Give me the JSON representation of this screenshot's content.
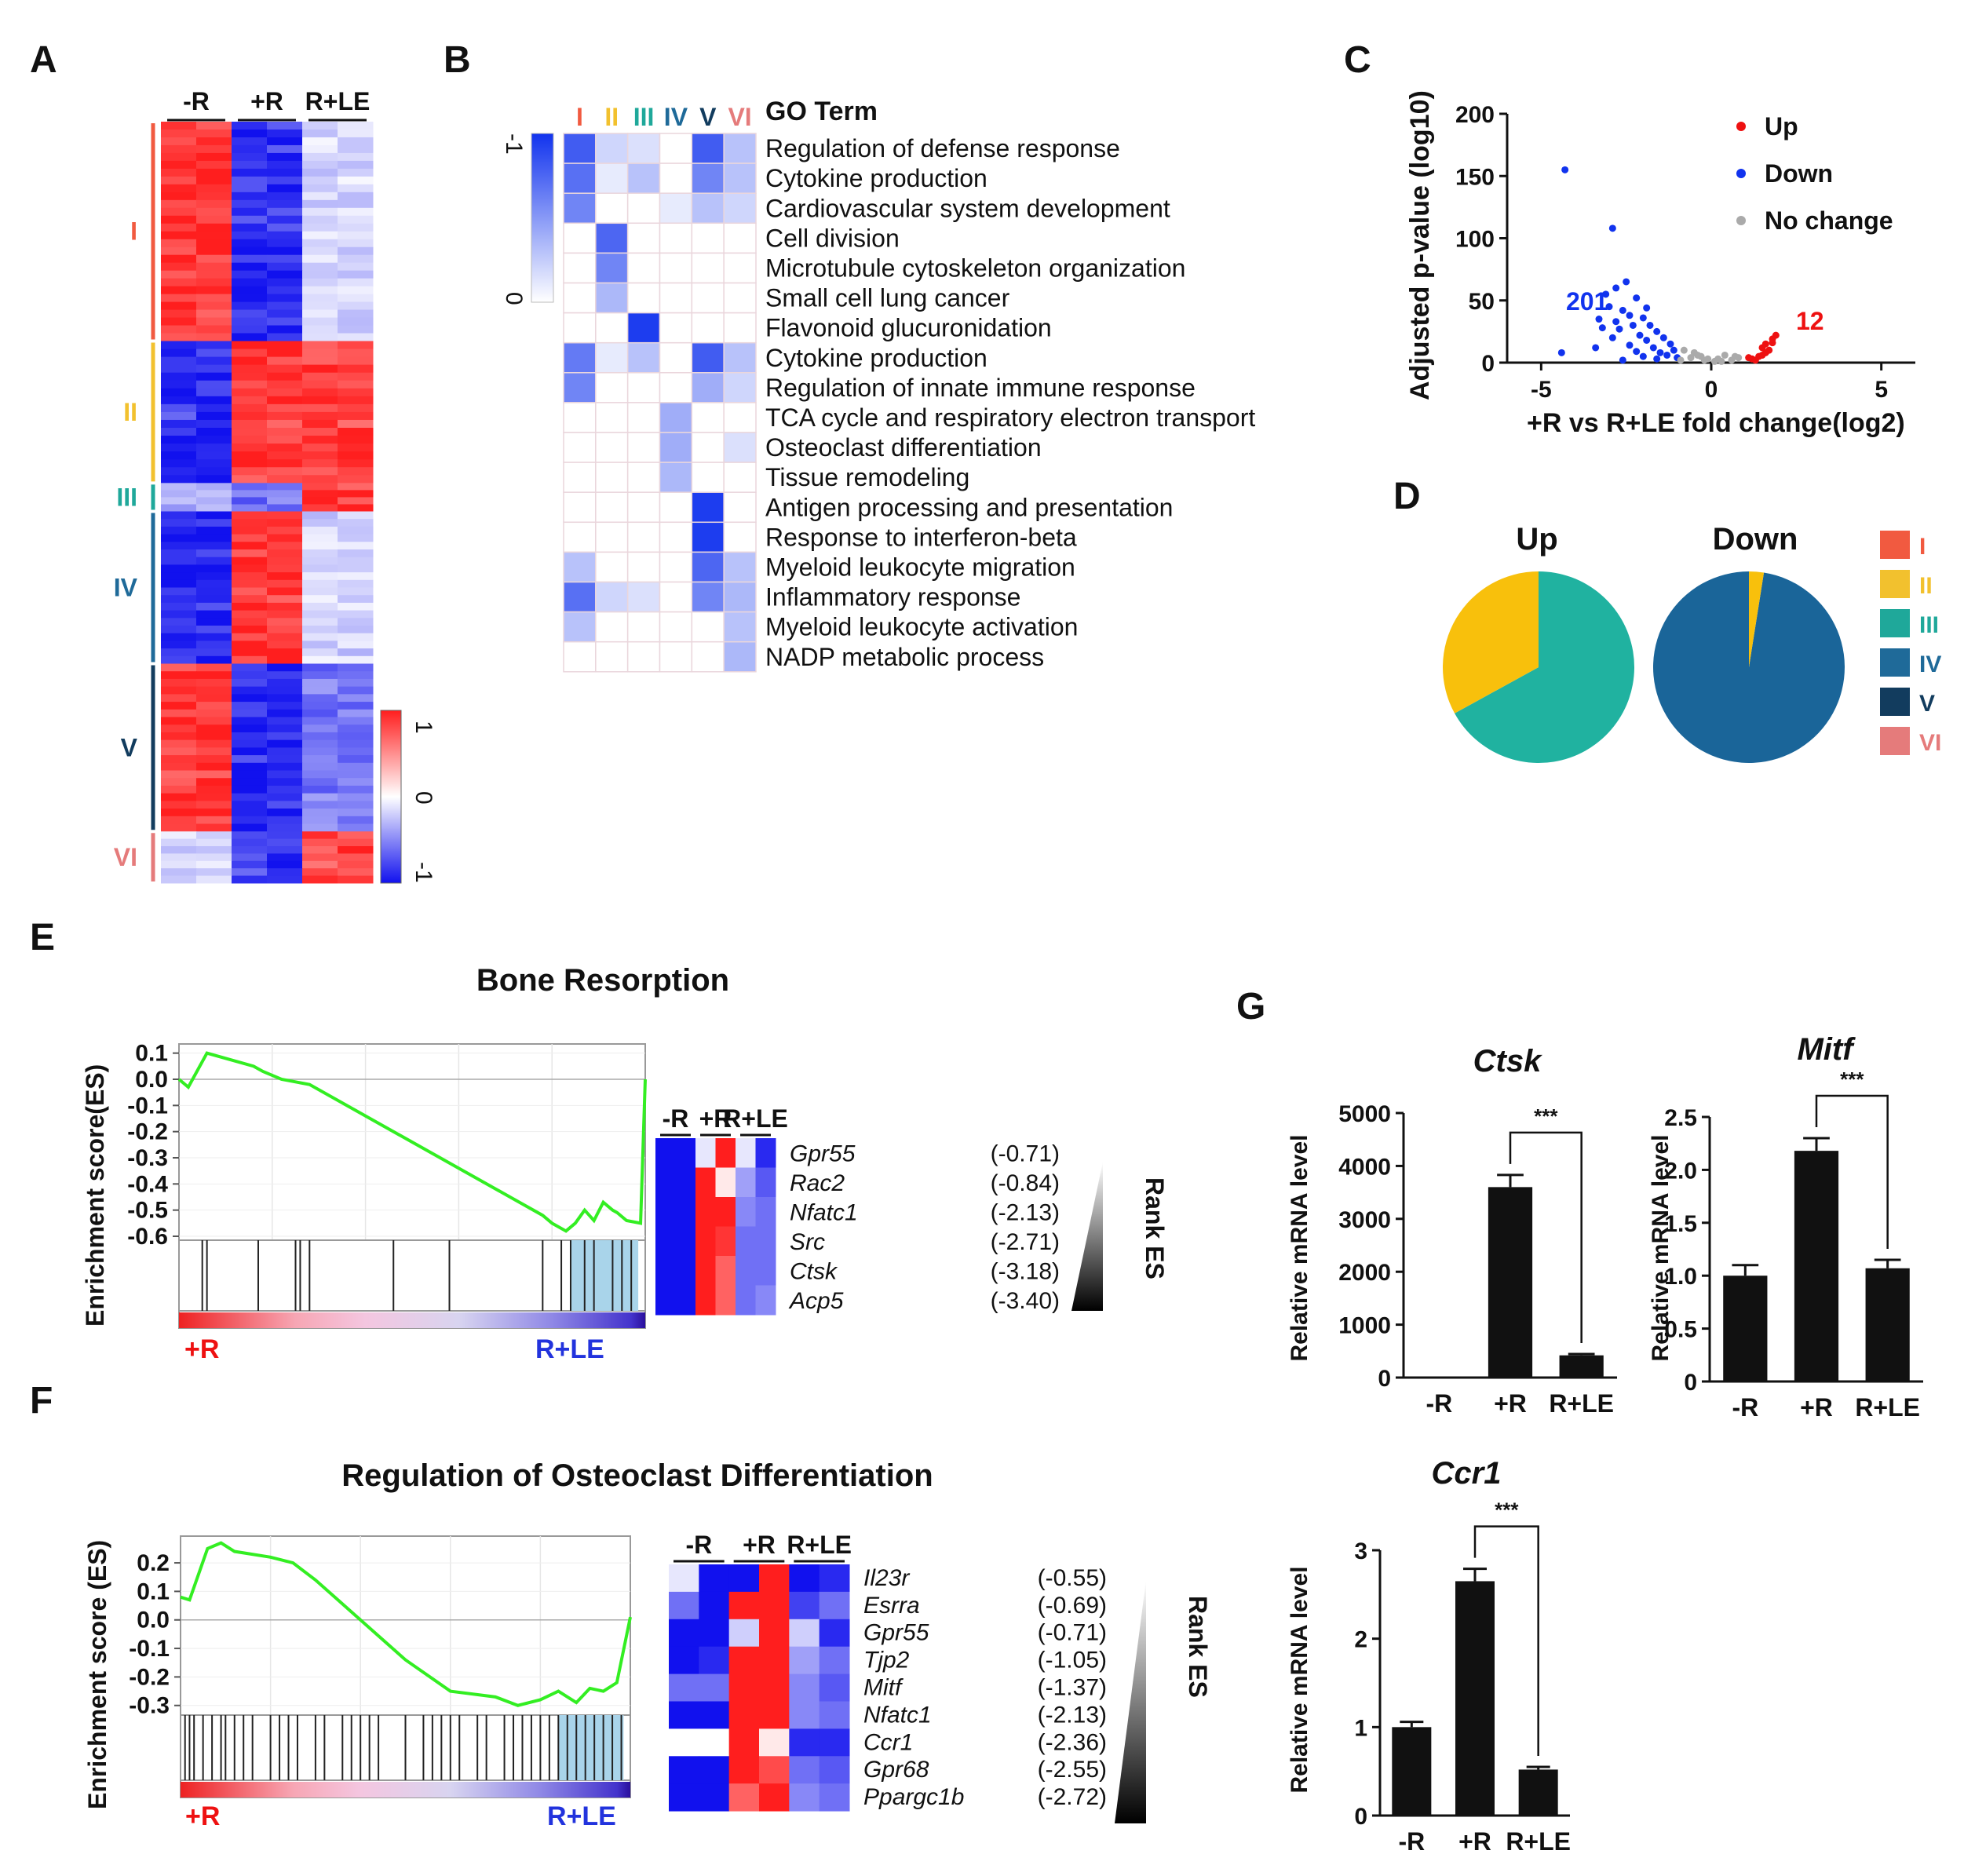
{
  "panel_labels": [
    "A",
    "B",
    "C",
    "D",
    "E",
    "F",
    "G"
  ],
  "colors": {
    "I": "#f15a40",
    "II": "#f2c12e",
    "III": "#1fa89a",
    "IV": "#1f6a99",
    "V": "#123c5e",
    "VI": "#e57b7b",
    "red": "#ff1e1e",
    "blue": "#1111ee",
    "green": "#33ee22",
    "bar": "#111111",
    "up": "#ee1111",
    "down": "#1133ee",
    "nochange": "#aaaaaa",
    "pie_teal": "#20b2a0",
    "pie_yellow": "#f8c00c",
    "pie_blue": "#1a6599"
  },
  "panelA": {
    "columns": [
      "-R",
      "+R",
      "R+LE"
    ],
    "clusters": [
      {
        "id": "I",
        "label": "I",
        "color": "#f15a40",
        "pattern": [
          1,
          -1,
          -0.2
        ],
        "rows": 170
      },
      {
        "id": "II",
        "label": "II",
        "color": "#f2c12e",
        "pattern": [
          -1,
          1,
          1
        ],
        "rows": 110
      },
      {
        "id": "III",
        "label": "III",
        "color": "#1fa89a",
        "pattern": [
          -0.4,
          -0.6,
          1
        ],
        "rows": 22
      },
      {
        "id": "IV",
        "label": "IV",
        "color": "#1f6a99",
        "pattern": [
          -1,
          1,
          -0.2
        ],
        "rows": 118
      },
      {
        "id": "V",
        "label": "V",
        "color": "#123c5e",
        "pattern": [
          1,
          -1,
          -0.6
        ],
        "rows": 130
      },
      {
        "id": "VI",
        "label": "VI",
        "color": "#e57b7b",
        "pattern": [
          -0.2,
          -0.9,
          0.9
        ],
        "rows": 40
      }
    ],
    "scale": {
      "max_label": "1",
      "mid_label": "0",
      "min_label": "-1"
    }
  },
  "panelB": {
    "header_labels": [
      "I",
      "II",
      "III",
      "IV",
      "V",
      "VI"
    ],
    "header_colors": [
      "#f15a40",
      "#f2c12e",
      "#1fa89a",
      "#1f6a99",
      "#123c5e",
      "#e57b7b"
    ],
    "go_term_header": "GO Term",
    "scale": {
      "top_label": "-1",
      "bottom_label": "0"
    },
    "terms": [
      {
        "name": "Regulation of defense response",
        "values": [
          0.8,
          0.2,
          0.15,
          0,
          0.8,
          0.3
        ]
      },
      {
        "name": "Cytokine production",
        "values": [
          0.7,
          0.1,
          0.3,
          0,
          0.6,
          0.3
        ]
      },
      {
        "name": "Cardiovascular system development",
        "values": [
          0.6,
          0,
          0,
          0.1,
          0.3,
          0.2
        ]
      },
      {
        "name": "Cell division",
        "values": [
          0,
          0.75,
          0,
          0,
          0,
          0
        ]
      },
      {
        "name": "Microtubule cytoskeleton organization",
        "values": [
          0,
          0.6,
          0,
          0,
          0,
          0
        ]
      },
      {
        "name": "Small cell lung cancer",
        "values": [
          0,
          0.35,
          0,
          0,
          0,
          0
        ]
      },
      {
        "name": "Flavonoid glucuronidation",
        "values": [
          0,
          0,
          0.95,
          0,
          0,
          0
        ]
      },
      {
        "name": "Cytokine production",
        "values": [
          0.65,
          0.1,
          0.3,
          0,
          0.8,
          0.3
        ]
      },
      {
        "name": "Regulation of innate immune response",
        "values": [
          0.6,
          0,
          0,
          0,
          0.4,
          0.2
        ]
      },
      {
        "name": "TCA cycle and respiratory electron transport",
        "values": [
          0,
          0,
          0,
          0.4,
          0,
          0
        ]
      },
      {
        "name": "Osteoclast differentiation",
        "values": [
          0,
          0,
          0,
          0.4,
          0,
          0.15
        ]
      },
      {
        "name": "Tissue remodeling",
        "values": [
          0,
          0,
          0,
          0.35,
          0,
          0
        ]
      },
      {
        "name": "Antigen processing and presentation",
        "values": [
          0,
          0,
          0,
          0,
          0.95,
          0
        ]
      },
      {
        "name": "Response to interferon-beta",
        "values": [
          0,
          0,
          0,
          0,
          0.95,
          0
        ]
      },
      {
        "name": "Myeloid leukocyte migration",
        "values": [
          0.3,
          0,
          0,
          0,
          0.75,
          0.3
        ]
      },
      {
        "name": "Inflammatory response",
        "values": [
          0.7,
          0.2,
          0.15,
          0,
          0.6,
          0.35
        ]
      },
      {
        "name": "Myeloid leukocyte activation",
        "values": [
          0.3,
          0,
          0,
          0,
          0,
          0.3
        ]
      },
      {
        "name": "NADP metabolic process",
        "values": [
          0,
          0,
          0,
          0,
          0,
          0.35
        ]
      }
    ]
  },
  "panelE": {
    "title": "Bone Resorption",
    "ylabel": "Enrichment score(ES)",
    "yticks": [
      "0.1",
      "0.0",
      "-0.1",
      "-0.2",
      "-0.3",
      "-0.4",
      "-0.5",
      "-0.6"
    ],
    "left_label": "+R",
    "right_label": "R+LE",
    "columns": [
      "-R",
      "+R",
      "R+LE"
    ],
    "rank_label": "Rank ES",
    "genes": [
      {
        "name": "Gpr55",
        "score": "(-0.71)",
        "values": [
          -1,
          -1,
          -0.1,
          1,
          -0.1,
          -0.9
        ]
      },
      {
        "name": "Rac2",
        "score": "(-0.84)",
        "values": [
          -1,
          -1,
          1,
          0.1,
          -0.4,
          -0.7
        ]
      },
      {
        "name": "Nfatc1",
        "score": "(-2.13)",
        "values": [
          -1,
          -1,
          1,
          1,
          -0.5,
          -0.6
        ]
      },
      {
        "name": "Src",
        "score": "(-2.71)",
        "values": [
          -1,
          -1,
          1,
          0.9,
          -0.6,
          -0.6
        ]
      },
      {
        "name": "Ctsk",
        "score": "(-3.18)",
        "values": [
          -1,
          -1,
          1,
          0.7,
          -0.6,
          -0.6
        ]
      },
      {
        "name": "Acp5",
        "score": "(-3.40)",
        "values": [
          -1,
          -1,
          1,
          0.7,
          -0.6,
          -0.5
        ]
      }
    ]
  },
  "panelF": {
    "title": "Regulation of Osteoclast Differentiation",
    "ylabel": "Enrichment score (ES)",
    "yticks": [
      "0.2",
      "0.1",
      "0.0",
      "-0.1",
      "-0.2",
      "-0.3"
    ],
    "left_label": "+R",
    "right_label": "R+LE",
    "columns": [
      "-R",
      "+R",
      "R+LE"
    ],
    "rank_label": "Rank ES",
    "genes": [
      {
        "name": "Il23r",
        "score": "(-0.55)",
        "values": [
          -0.1,
          -1,
          -1,
          1,
          -1,
          -0.9
        ]
      },
      {
        "name": "Esrra",
        "score": "(-0.69)",
        "values": [
          -0.6,
          -1,
          1,
          1,
          -0.8,
          -0.6
        ]
      },
      {
        "name": "Gpr55",
        "score": "(-0.71)",
        "values": [
          -1,
          -1,
          -0.2,
          1,
          -0.2,
          -0.9
        ]
      },
      {
        "name": "Tjp2",
        "score": "(-1.05)",
        "values": [
          -1,
          -0.9,
          1,
          1,
          -0.4,
          -0.6
        ]
      },
      {
        "name": "Mitf",
        "score": "(-1.37)",
        "values": [
          -0.6,
          -0.6,
          1,
          1,
          -0.5,
          -0.7
        ]
      },
      {
        "name": "Nfatc1",
        "score": "(-2.13)",
        "values": [
          -1,
          -1,
          1,
          1,
          -0.5,
          -0.6
        ]
      },
      {
        "name": "Ccr1",
        "score": "(-2.36)",
        "values": [
          0,
          0,
          1,
          0.1,
          -0.9,
          -0.9
        ]
      },
      {
        "name": "Gpr68",
        "score": "(-2.55)",
        "values": [
          -1,
          -1,
          1,
          0.8,
          -0.6,
          -0.7
        ]
      },
      {
        "name": "Ppargc1b",
        "score": "(-2.72)",
        "values": [
          -1,
          -1,
          0.7,
          1,
          -0.5,
          -0.6
        ]
      }
    ]
  },
  "chart_data": [
    {
      "id": "C",
      "type": "scatter",
      "title": "",
      "xlabel": "+R vs R+LE fold change(log2)",
      "ylabel": "Adjusted p-value (log10)",
      "xlim": [
        -6,
        6
      ],
      "ylim": [
        0,
        200
      ],
      "xticks": [
        -5,
        0,
        5
      ],
      "yticks": [
        0,
        50,
        100,
        150,
        200
      ],
      "legend": [
        "Up",
        "Down",
        "No change"
      ],
      "annotations": [
        {
          "text": "201",
          "color": "#1133ee"
        },
        {
          "text": "12",
          "color": "#ee1111"
        }
      ],
      "series": [
        {
          "name": "Up",
          "points": [
            [
              1.2,
              3
            ],
            [
              1.4,
              5
            ],
            [
              1.6,
              8
            ],
            [
              1.8,
              16
            ],
            [
              1.5,
              12
            ],
            [
              1.9,
              22
            ],
            [
              1.3,
              2
            ],
            [
              1.7,
              10
            ],
            [
              1.1,
              4
            ],
            [
              1.5,
              6
            ],
            [
              1.6,
              15
            ],
            [
              1.8,
              19
            ]
          ]
        },
        {
          "name": "Down",
          "points": [
            [
              -4.3,
              155
            ],
            [
              -2.9,
              108
            ],
            [
              -2.5,
              65
            ],
            [
              -2.8,
              60
            ],
            [
              -3.1,
              55
            ],
            [
              -2.2,
              52
            ],
            [
              -4.4,
              8
            ],
            [
              -3.0,
              45
            ],
            [
              -2.6,
              42
            ],
            [
              -2.4,
              38
            ],
            [
              -2.0,
              36
            ],
            [
              -1.8,
              30
            ],
            [
              -3.2,
              28
            ],
            [
              -2.7,
              27
            ],
            [
              -1.6,
              25
            ],
            [
              -2.1,
              22
            ],
            [
              -1.4,
              20
            ],
            [
              -2.9,
              20
            ],
            [
              -1.9,
              18
            ],
            [
              -1.2,
              15
            ],
            [
              -2.4,
              14
            ],
            [
              -1.7,
              12
            ],
            [
              -1.1,
              10
            ],
            [
              -2.2,
              9
            ],
            [
              -1.5,
              8
            ],
            [
              -1.3,
              6
            ],
            [
              -2.0,
              5
            ],
            [
              -1.0,
              4
            ],
            [
              -1.6,
              3
            ],
            [
              -2.6,
              2
            ],
            [
              -3.4,
              12
            ],
            [
              -3.3,
              35
            ],
            [
              -2.3,
              30
            ],
            [
              -1.9,
              44
            ],
            [
              -2.8,
              33
            ]
          ]
        },
        {
          "name": "No change",
          "points": [
            [
              -0.5,
              8
            ],
            [
              -0.3,
              5
            ],
            [
              -0.8,
              10
            ],
            [
              0.2,
              3
            ],
            [
              0.4,
              6
            ],
            [
              -0.2,
              2
            ],
            [
              0.6,
              2
            ],
            [
              0.8,
              4
            ],
            [
              -0.6,
              4
            ],
            [
              -0.9,
              2
            ],
            [
              0.1,
              1
            ],
            [
              -0.1,
              3
            ],
            [
              0.3,
              1
            ],
            [
              0.7,
              5
            ],
            [
              -0.4,
              6
            ]
          ]
        }
      ]
    },
    {
      "id": "D-Up",
      "type": "pie",
      "title": "Up",
      "slices": [
        {
          "label": "III",
          "value": 0.67,
          "color": "#20b2a0"
        },
        {
          "label": "II",
          "value": 0.33,
          "color": "#f8c00c"
        }
      ]
    },
    {
      "id": "D-Down",
      "type": "pie",
      "title": "Down",
      "slices": [
        {
          "label": "IV",
          "value": 0.975,
          "color": "#1a6599"
        },
        {
          "label": "II",
          "value": 0.025,
          "color": "#f8c00c"
        }
      ],
      "legend": [
        "I",
        "II",
        "III",
        "IV",
        "V",
        "VI"
      ]
    },
    {
      "id": "E-curve",
      "type": "line",
      "title": "Bone Resorption",
      "ylabel": "Enrichment score(ES)",
      "ylim": [
        -0.6,
        0.12
      ],
      "x": [
        0,
        0.02,
        0.06,
        0.16,
        0.18,
        0.22,
        0.25,
        0.28,
        0.78,
        0.8,
        0.83,
        0.85,
        0.87,
        0.89,
        0.91,
        0.93,
        0.94,
        0.96,
        0.99,
        1.0
      ],
      "values": [
        0.0,
        -0.03,
        0.1,
        0.05,
        0.03,
        0.0,
        -0.01,
        -0.02,
        -0.52,
        -0.55,
        -0.58,
        -0.55,
        -0.5,
        -0.54,
        -0.47,
        -0.5,
        -0.51,
        -0.54,
        -0.55,
        0.0
      ],
      "hits": [
        0.05,
        0.06,
        0.17,
        0.25,
        0.26,
        0.28,
        0.46,
        0.58,
        0.78,
        0.82,
        0.84,
        0.87,
        0.89,
        0.93,
        0.95,
        0.97
      ]
    },
    {
      "id": "F-curve",
      "type": "line",
      "title": "Regulation of Osteoclast Differentiation",
      "ylabel": "Enrichment score (ES)",
      "ylim": [
        -0.32,
        0.28
      ],
      "x": [
        0,
        0.02,
        0.06,
        0.09,
        0.12,
        0.2,
        0.25,
        0.3,
        0.4,
        0.5,
        0.6,
        0.7,
        0.75,
        0.8,
        0.84,
        0.88,
        0.91,
        0.94,
        0.97,
        1.0
      ],
      "values": [
        0.08,
        0.07,
        0.25,
        0.27,
        0.24,
        0.22,
        0.2,
        0.14,
        0.0,
        -0.14,
        -0.25,
        -0.27,
        -0.3,
        -0.28,
        -0.25,
        -0.29,
        -0.24,
        -0.25,
        -0.22,
        0.01
      ],
      "hits": [
        0.01,
        0.02,
        0.03,
        0.05,
        0.07,
        0.09,
        0.1,
        0.12,
        0.14,
        0.16,
        0.2,
        0.22,
        0.24,
        0.26,
        0.3,
        0.32,
        0.36,
        0.38,
        0.4,
        0.42,
        0.44,
        0.5,
        0.54,
        0.56,
        0.58,
        0.6,
        0.62,
        0.66,
        0.68,
        0.72,
        0.74,
        0.76,
        0.78,
        0.8,
        0.82,
        0.84,
        0.86,
        0.88,
        0.9,
        0.92,
        0.94,
        0.96,
        0.98
      ]
    },
    {
      "id": "G-Ctsk",
      "type": "bar",
      "title": "Ctsk",
      "ylabel": "Relative mRNA level",
      "categories": [
        "-R",
        "+R",
        "R+LE"
      ],
      "values": [
        5,
        3600,
        420
      ],
      "errors": [
        0,
        230,
        25
      ],
      "ylim": [
        0,
        5000
      ],
      "yticks": [
        "0",
        "1000",
        "2000",
        "3000",
        "4000",
        "5000"
      ],
      "significance": "***"
    },
    {
      "id": "G-Mitf",
      "type": "bar",
      "title": "Mitf",
      "ylabel": "Relative mRNA level",
      "categories": [
        "-R",
        "+R",
        "R+LE"
      ],
      "values": [
        1.0,
        2.18,
        1.07
      ],
      "errors": [
        0.1,
        0.12,
        0.08
      ],
      "ylim": [
        0,
        2.5
      ],
      "yticks": [
        "0",
        "0.5",
        "1.0",
        "1.5",
        "2.0",
        "2.5"
      ],
      "significance": "***"
    },
    {
      "id": "G-Ccr1",
      "type": "bar",
      "title": "Ccr1",
      "ylabel": "Relative mRNA level",
      "categories": [
        "-R",
        "+R",
        "R+LE"
      ],
      "values": [
        1.0,
        2.65,
        0.52
      ],
      "errors": [
        0.06,
        0.14,
        0.03
      ],
      "ylim": [
        0,
        3
      ],
      "yticks": [
        "0",
        "1",
        "2",
        "3"
      ],
      "significance": "***"
    }
  ]
}
